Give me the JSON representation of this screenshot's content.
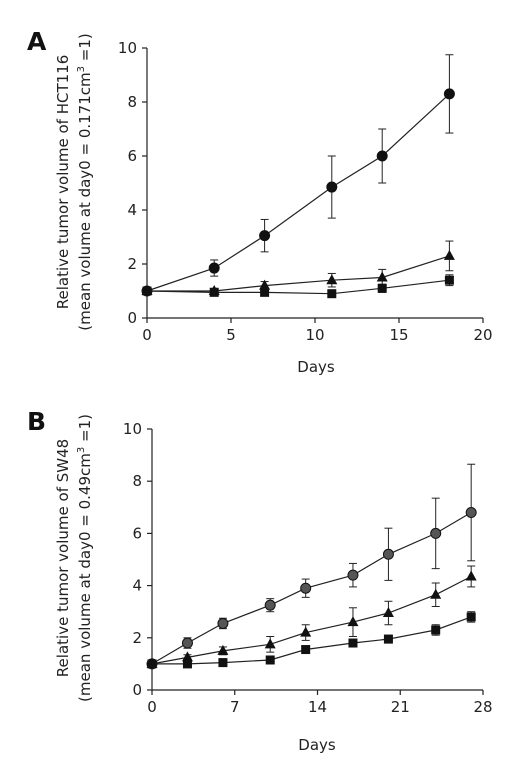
{
  "chart_data": [
    {
      "type": "line",
      "panel_label": "A",
      "xlabel": "Days",
      "ylabel_line1": "Relative tumor volume of HCT116",
      "ylabel_line2_pre": "(mean volume at day0 = 0.171cm",
      "ylabel_line2_sup": "3",
      "ylabel_line2_post": " =1)",
      "xlim": [
        0,
        20
      ],
      "ylim": [
        0,
        10
      ],
      "xticks": [
        0,
        5,
        10,
        15,
        20
      ],
      "yticks": [
        0,
        2,
        4,
        6,
        8,
        10
      ],
      "series": [
        {
          "marker": "circle",
          "color": "#111111",
          "x": [
            0,
            4,
            7,
            11,
            14,
            18
          ],
          "y": [
            1.0,
            1.85,
            3.05,
            4.85,
            6.0,
            8.3
          ],
          "err": [
            0.0,
            0.3,
            0.6,
            1.15,
            1.0,
            1.45
          ]
        },
        {
          "marker": "triangle",
          "color": "#111111",
          "x": [
            0,
            4,
            7,
            11,
            14,
            18
          ],
          "y": [
            1.0,
            1.0,
            1.2,
            1.4,
            1.5,
            2.3
          ],
          "err": [
            0.0,
            0.1,
            0.15,
            0.25,
            0.3,
            0.55
          ]
        },
        {
          "marker": "square",
          "color": "#111111",
          "x": [
            0,
            4,
            7,
            11,
            14,
            18
          ],
          "y": [
            1.0,
            0.95,
            0.95,
            0.9,
            1.1,
            1.4
          ],
          "err": [
            0.0,
            0.08,
            0.1,
            0.1,
            0.15,
            0.2
          ]
        }
      ]
    },
    {
      "type": "line",
      "panel_label": "B",
      "xlabel": "Days",
      "ylabel_line1": "Relative tumor volume of SW48",
      "ylabel_line2_pre": "(mean volume at day0 = 0.49cm",
      "ylabel_line2_sup": "3",
      "ylabel_line2_post": " =1)",
      "xlim": [
        0,
        28
      ],
      "ylim": [
        0,
        10
      ],
      "xticks": [
        0,
        7,
        14,
        21,
        28
      ],
      "yticks": [
        0,
        2,
        4,
        6,
        8,
        10
      ],
      "series": [
        {
          "marker": "circle",
          "color": "#555555",
          "x": [
            0,
            3,
            6,
            10,
            13,
            17,
            20,
            24,
            27
          ],
          "y": [
            1.0,
            1.8,
            2.55,
            3.25,
            3.9,
            4.4,
            5.2,
            6.0,
            6.8
          ],
          "err": [
            0.0,
            0.2,
            0.2,
            0.25,
            0.35,
            0.45,
            1.0,
            1.35,
            1.85
          ]
        },
        {
          "marker": "triangle",
          "color": "#111111",
          "x": [
            0,
            3,
            6,
            10,
            13,
            17,
            20,
            24,
            27
          ],
          "y": [
            1.0,
            1.25,
            1.5,
            1.75,
            2.2,
            2.6,
            2.95,
            3.65,
            4.35
          ],
          "err": [
            0.0,
            0.1,
            0.15,
            0.3,
            0.3,
            0.55,
            0.45,
            0.45,
            0.4
          ]
        },
        {
          "marker": "square",
          "color": "#111111",
          "x": [
            0,
            3,
            6,
            10,
            13,
            17,
            20,
            24,
            27
          ],
          "y": [
            1.0,
            1.0,
            1.05,
            1.15,
            1.55,
            1.8,
            1.95,
            2.3,
            2.8
          ],
          "err": [
            0.0,
            0.1,
            0.1,
            0.15,
            0.1,
            0.1,
            0.15,
            0.2,
            0.2
          ]
        }
      ]
    }
  ]
}
